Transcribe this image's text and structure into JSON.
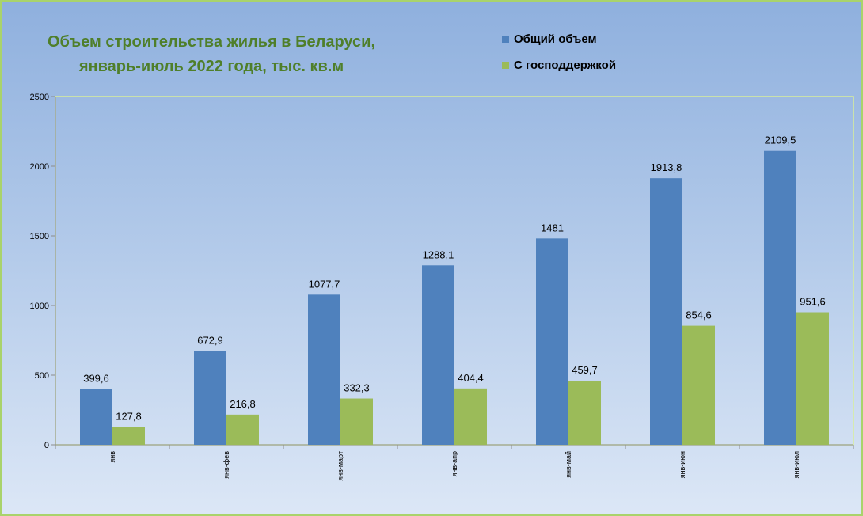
{
  "chart_data": {
    "type": "bar",
    "title_lines": [
      "Объем строительства жилья в Беларуси,",
      "январь-июль 2022 года, тыс. кв.м"
    ],
    "categories": [
      "янв",
      "янв-фев",
      "янв-март",
      "янв-апр",
      "янв-май",
      "янв-июн",
      "янв-июл"
    ],
    "series": [
      {
        "name": "Общий объем",
        "color": "#4f81bd",
        "values": [
          399.6,
          672.9,
          1077.7,
          1288.1,
          1481,
          1913.8,
          2109.5
        ],
        "labels": [
          "399,6",
          "672,9",
          "1077,7",
          "1288,1",
          "1481",
          "1913,8",
          "2109,5"
        ]
      },
      {
        "name": "С господдержкой",
        "color": "#9bbb59",
        "values": [
          127.8,
          216.8,
          332.3,
          404.4,
          459.7,
          854.6,
          951.6
        ],
        "labels": [
          "127,8",
          "216,8",
          "332,3",
          "404,4",
          "459,7",
          "854,6",
          "951,6"
        ]
      }
    ],
    "ylim": [
      0,
      2500
    ],
    "yticks": [
      0,
      500,
      1000,
      1500,
      2000,
      2500
    ],
    "xlabel": "",
    "ylabel": "",
    "grid": false,
    "legend_position": "top-right"
  }
}
